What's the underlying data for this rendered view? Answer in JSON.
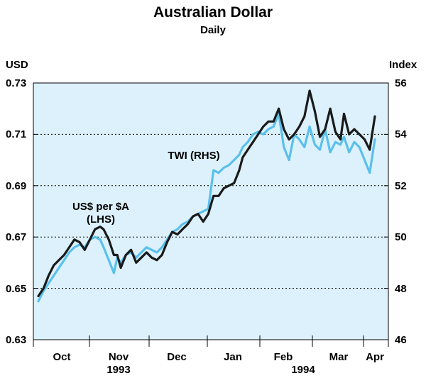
{
  "title": "Australian Dollar",
  "subtitle": "Daily",
  "colors": {
    "background": "#dcf1fb",
    "usd_line": "#1a1a1a",
    "twi_line": "#5bc0eb",
    "grid": "#000000"
  },
  "chart_data": {
    "type": "line",
    "title": "Australian Dollar",
    "subtitle": "Daily",
    "left_axis": {
      "label": "USD",
      "ylim": [
        0.63,
        0.73
      ],
      "ticks": [
        "0.63",
        "0.65",
        "0.67",
        "0.69",
        "0.71",
        "0.73"
      ]
    },
    "right_axis": {
      "label": "Index",
      "ylim": [
        46,
        56
      ],
      "ticks": [
        "46",
        "48",
        "50",
        "52",
        "54",
        "56"
      ]
    },
    "x_axis": {
      "months": [
        "Oct",
        "Nov",
        "Dec",
        "Jan",
        "Feb",
        "Mar",
        "Apr"
      ],
      "years": [
        "1993",
        "1994"
      ]
    },
    "grid": "horizontal dotted",
    "annotations": [
      {
        "lines": [
          "US$ per $A",
          "(LHS)"
        ]
      },
      {
        "lines": [
          "TWI (RHS)"
        ]
      }
    ],
    "series": [
      {
        "name": "US$ per $A (LHS)",
        "axis": "left",
        "x": [
          0,
          3,
          6,
          9,
          12,
          15,
          18,
          21,
          24,
          27,
          30,
          33,
          36,
          38,
          41,
          44,
          46,
          48,
          51,
          54,
          57,
          60,
          63,
          66,
          69,
          72,
          75,
          78,
          81,
          84,
          87,
          90,
          93,
          96,
          99,
          102,
          105,
          108,
          111,
          114,
          117,
          119,
          122,
          125,
          128,
          131,
          134,
          137,
          140,
          143,
          146,
          149,
          152,
          155,
          158,
          161,
          164,
          167,
          170,
          173,
          176,
          178,
          181,
          184,
          187,
          190,
          193,
          196
        ],
        "y": [
          0.647,
          0.65,
          0.655,
          0.659,
          0.661,
          0.663,
          0.666,
          0.669,
          0.668,
          0.665,
          0.669,
          0.673,
          0.674,
          0.673,
          0.669,
          0.663,
          0.663,
          0.658,
          0.663,
          0.665,
          0.66,
          0.662,
          0.664,
          0.662,
          0.661,
          0.663,
          0.668,
          0.672,
          0.671,
          0.673,
          0.675,
          0.678,
          0.679,
          0.676,
          0.679,
          0.686,
          0.686,
          0.689,
          0.69,
          0.691,
          0.696,
          0.701,
          0.704,
          0.707,
          0.71,
          0.713,
          0.715,
          0.715,
          0.72,
          0.712,
          0.708,
          0.71,
          0.713,
          0.717,
          0.727,
          0.719,
          0.709,
          0.712,
          0.72,
          0.711,
          0.708,
          0.718,
          0.71,
          0.712,
          0.71,
          0.708,
          0.704,
          0.717
        ]
      },
      {
        "name": "TWI (RHS)",
        "axis": "right",
        "x": [
          0,
          3,
          6,
          9,
          12,
          15,
          18,
          21,
          24,
          27,
          30,
          33,
          36,
          38,
          41,
          44,
          46,
          48,
          51,
          54,
          57,
          60,
          63,
          66,
          69,
          72,
          75,
          78,
          81,
          84,
          87,
          90,
          93,
          96,
          99,
          102,
          105,
          108,
          111,
          114,
          117,
          119,
          122,
          125,
          128,
          131,
          134,
          137,
          140,
          143,
          146,
          149,
          152,
          155,
          158,
          161,
          164,
          167,
          170,
          173,
          176,
          178,
          181,
          184,
          187,
          190,
          193,
          196
        ],
        "y": [
          47.5,
          47.9,
          48.2,
          48.5,
          48.8,
          49.1,
          49.4,
          49.6,
          49.7,
          49.6,
          49.9,
          50.0,
          49.9,
          49.6,
          49.1,
          48.6,
          49.2,
          49.0,
          49.3,
          49.4,
          49.2,
          49.4,
          49.6,
          49.5,
          49.4,
          49.6,
          49.9,
          50.2,
          50.3,
          50.5,
          50.6,
          50.8,
          50.9,
          51.0,
          51.1,
          52.6,
          52.5,
          52.7,
          52.8,
          53.0,
          53.2,
          53.5,
          53.7,
          54.0,
          54.1,
          54.0,
          54.2,
          54.3,
          54.8,
          53.5,
          53.0,
          54.0,
          53.8,
          53.5,
          54.3,
          53.6,
          53.4,
          54.2,
          53.3,
          53.7,
          53.6,
          53.9,
          53.3,
          53.7,
          53.5,
          53.0,
          52.5,
          53.8
        ]
      }
    ]
  }
}
